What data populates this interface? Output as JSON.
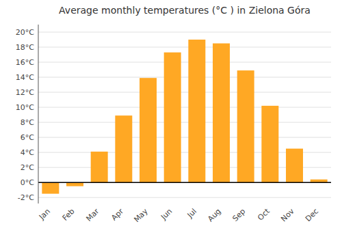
{
  "chart_data": {
    "type": "bar",
    "title": "Average monthly temperatures (°C ) in Zielona Góra",
    "categories": [
      "Jan",
      "Feb",
      "Mar",
      "Apr",
      "May",
      "Jun",
      "Jul",
      "Aug",
      "Sep",
      "Oct",
      "Nov",
      "Dec"
    ],
    "values": [
      -1.5,
      -0.5,
      4.1,
      8.9,
      13.9,
      17.3,
      19.0,
      18.5,
      14.9,
      10.2,
      4.5,
      0.4
    ],
    "color": "#FFA824",
    "ylim": [
      -2.8,
      21.0
    ],
    "yticks": [
      {
        "value": -2,
        "label": "-2°C"
      },
      {
        "value": 0,
        "label": "0°C"
      },
      {
        "value": 2,
        "label": "2°C"
      },
      {
        "value": 4,
        "label": "4°C"
      },
      {
        "value": 6,
        "label": "6°C"
      },
      {
        "value": 8,
        "label": "8°C"
      },
      {
        "value": 10,
        "label": "10°C"
      },
      {
        "value": 12,
        "label": "12°C"
      },
      {
        "value": 14,
        "label": "14°C"
      },
      {
        "value": 16,
        "label": "16°C"
      },
      {
        "value": 18,
        "label": "18°C"
      },
      {
        "value": 20,
        "label": "20°C"
      }
    ],
    "grid": true
  }
}
